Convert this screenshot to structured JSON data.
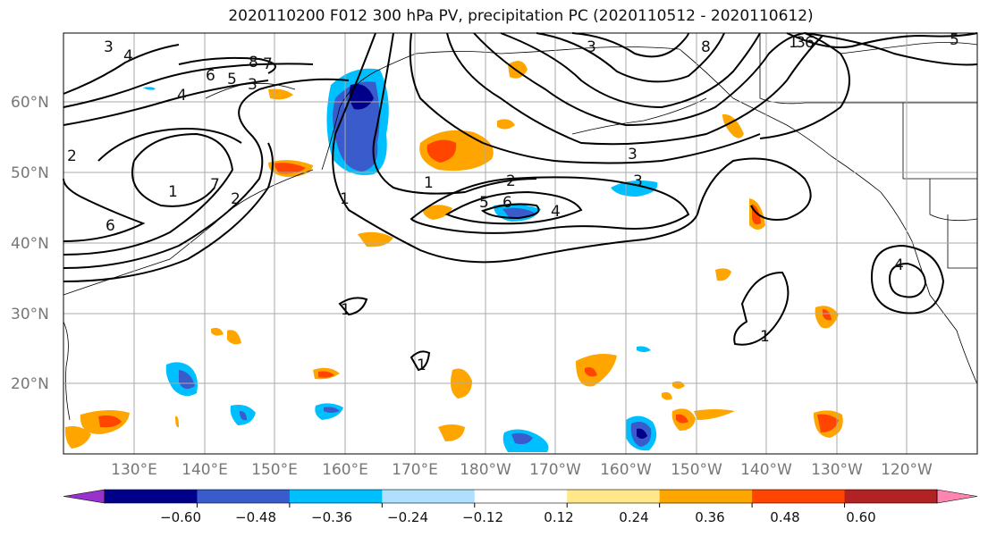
{
  "title": "2020110200 F012 300 hPa PV, precipitation PC (2020110512 - 2020110612)",
  "lat_labels": [
    "60°N",
    "50°N",
    "40°N",
    "30°N",
    "20°N"
  ],
  "lon_labels": [
    "130°E",
    "140°E",
    "150°E",
    "160°E",
    "170°E",
    "180°W",
    "170°W",
    "160°W",
    "150°W",
    "140°W",
    "130°W",
    "120°W"
  ],
  "colorbar": {
    "ticks": [
      "−0.60",
      "−0.48",
      "−0.36",
      "−0.24",
      "−0.12",
      "0.12",
      "0.24",
      "0.36",
      "0.48",
      "0.60"
    ],
    "colors": [
      "#9932cc",
      "#00008b",
      "#3a5bcc",
      "#00bfff",
      "#b0e0ff",
      "#ffffff",
      "#ffe88a",
      "#ffa500",
      "#ff4500",
      "#b22222",
      "#ff85b0"
    ]
  },
  "contour_labels": [
    "3",
    "4",
    "6",
    "8",
    "7",
    "5",
    "3",
    "4",
    "2",
    "1",
    "7",
    "2",
    "1",
    "6",
    "1",
    "2",
    "3",
    "3",
    "5",
    "6",
    "4",
    "8",
    "3",
    "1",
    "3",
    "6",
    "5",
    "1",
    "1",
    "1",
    "4"
  ],
  "colors": {
    "land_outline": "#000000",
    "grid": "#aaaaaa",
    "contour": "#000000"
  }
}
